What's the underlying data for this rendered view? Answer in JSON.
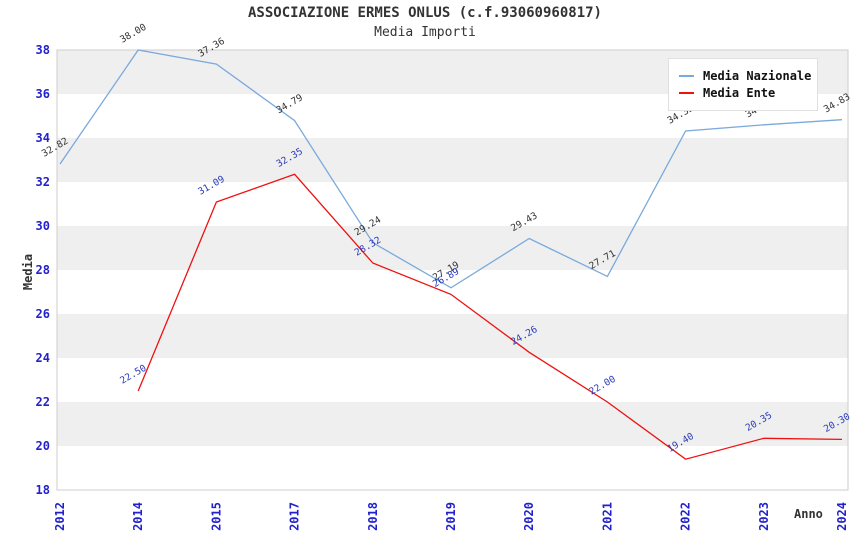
{
  "title": "ASSOCIAZIONE ERMES ONLUS (c.f.93060960817)",
  "subtitle": "Media Importi",
  "colors": {
    "media_nazionale_line": "#7aa9dc",
    "media_ente_line": "#ee1111",
    "tick_label": "#2222cc",
    "axis_title": "#333333",
    "band_fill": "#efefef",
    "plot_border": "#cccccc",
    "value_label_nazionale": "#333333",
    "value_label_ente": "#2a3bb8"
  },
  "legend": {
    "position": "top-right",
    "items": [
      {
        "label": "Media Nazionale",
        "color": "#7aa9dc"
      },
      {
        "label": "Media Ente",
        "color": "#ee1111"
      }
    ]
  },
  "chart_data": {
    "type": "line",
    "title": "ASSOCIAZIONE ERMES ONLUS (c.f.93060960817)",
    "subtitle": "Media Importi",
    "xlabel": "Anno",
    "ylabel": "Media",
    "ylim": [
      18,
      38
    ],
    "ytick_step": 2,
    "grid": "alternating-horizontal-bands",
    "legend_position": "top-right",
    "categories": [
      "2012",
      "2014",
      "2015",
      "2017",
      "2018",
      "2019",
      "2020",
      "2021",
      "2022",
      "2023",
      "2024"
    ],
    "series": [
      {
        "name": "Media Nazionale",
        "color": "#7aa9dc",
        "label_color": "#333333",
        "values": [
          32.82,
          38.0,
          37.36,
          34.79,
          29.24,
          27.19,
          29.43,
          27.71,
          34.32,
          34.6,
          34.83
        ]
      },
      {
        "name": "Media Ente",
        "color": "#ee1111",
        "label_color": "#2a3bb8",
        "values": [
          null,
          22.5,
          31.09,
          32.35,
          28.32,
          26.89,
          24.26,
          22.0,
          19.4,
          20.35,
          20.3
        ]
      }
    ]
  }
}
